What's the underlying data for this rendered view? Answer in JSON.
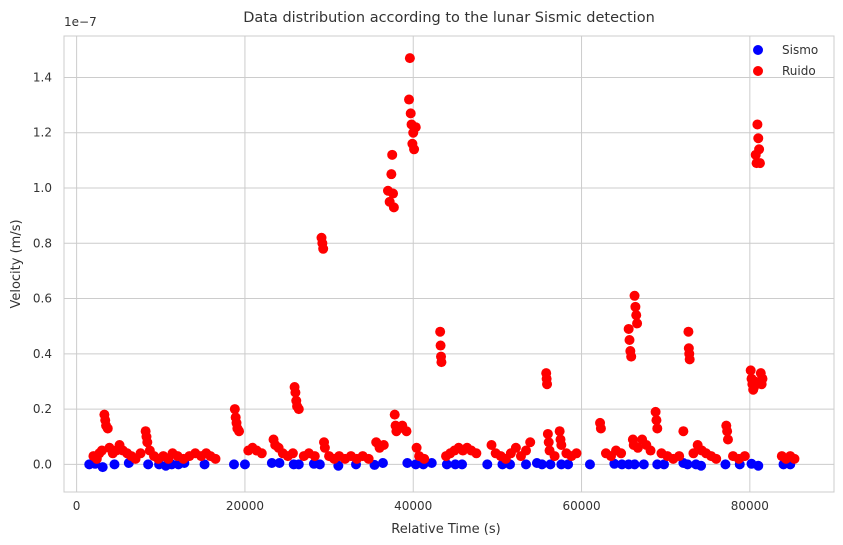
{
  "chart_data": {
    "type": "scatter",
    "title": "Data distribution according to the lunar Sismic detection",
    "xlabel": "Relative Time (s)",
    "ylabel": "Velocity (m/s)",
    "y_multiplier_label": "1e−7",
    "xlim": [
      -1500,
      90000
    ],
    "ylim": [
      -1e-08,
      1.55e-07
    ],
    "x_ticks": [
      0,
      20000,
      40000,
      60000,
      80000
    ],
    "x_tick_labels": [
      "0",
      "20000",
      "40000",
      "60000",
      "80000"
    ],
    "y_ticks": [
      0,
      2e-08,
      4e-08,
      6e-08,
      8e-08,
      1e-07,
      1.2e-07,
      1.4e-07
    ],
    "y_tick_labels": [
      "0.0",
      "0.2",
      "0.4",
      "0.6",
      "0.8",
      "1.0",
      "1.2",
      "1.4"
    ],
    "grid": true,
    "legend_position": "top-right",
    "colors": {
      "Sismo": "#0000ff",
      "Ruido": "#ff0000",
      "grid": "#cccccc",
      "axes_edge": "#cccccc"
    },
    "series": [
      {
        "name": "Sismo",
        "points": [
          [
            1500,
            0.0
          ],
          [
            2200,
            2e-10
          ],
          [
            3100,
            -1e-09
          ],
          [
            4500,
            0.0
          ],
          [
            6200,
            5e-10
          ],
          [
            8500,
            0.0
          ],
          [
            9800,
            0.0
          ],
          [
            10600,
            -5e-10
          ],
          [
            11300,
            0.0
          ],
          [
            12100,
            0.0
          ],
          [
            12800,
            5e-10
          ],
          [
            15200,
            0.0
          ],
          [
            18700,
            0.0
          ],
          [
            20000,
            0.0
          ],
          [
            23200,
            5e-10
          ],
          [
            24100,
            5e-10
          ],
          [
            25800,
            0.0
          ],
          [
            26400,
            0.0
          ],
          [
            28200,
            2e-10
          ],
          [
            28900,
            0.0
          ],
          [
            31100,
            -5e-10
          ],
          [
            33200,
            0.0
          ],
          [
            35400,
            -2e-10
          ],
          [
            36400,
            5e-10
          ],
          [
            39300,
            5e-10
          ],
          [
            40300,
            0.0
          ],
          [
            41200,
            0.0
          ],
          [
            42200,
            5e-10
          ],
          [
            44000,
            0.0
          ],
          [
            45000,
            0.0
          ],
          [
            45800,
            0.0
          ],
          [
            48800,
            0.0
          ],
          [
            50600,
            0.0
          ],
          [
            51500,
            0.0
          ],
          [
            53400,
            0.0
          ],
          [
            54700,
            5e-10
          ],
          [
            55300,
            0.0
          ],
          [
            56300,
            0.0
          ],
          [
            57600,
            0.0
          ],
          [
            58400,
            0.0
          ],
          [
            61000,
            0.0
          ],
          [
            63900,
            2e-10
          ],
          [
            64800,
            0.0
          ],
          [
            65600,
            0.0
          ],
          [
            66300,
            0.0
          ],
          [
            67400,
            0.0
          ],
          [
            69000,
            0.0
          ],
          [
            69800,
            0.0
          ],
          [
            72100,
            5e-10
          ],
          [
            72600,
            0.0
          ],
          [
            73600,
            0.0
          ],
          [
            74200,
            -5e-10
          ],
          [
            77100,
            0.0
          ],
          [
            78800,
            0.0
          ],
          [
            80200,
            2e-10
          ],
          [
            81000,
            -5e-10
          ],
          [
            84000,
            0.0
          ],
          [
            84800,
            0.0
          ]
        ]
      },
      {
        "name": "Ruido",
        "points": [
          [
            2000,
            3e-09
          ],
          [
            2400,
            2e-09
          ],
          [
            2700,
            4e-09
          ],
          [
            3000,
            5e-09
          ],
          [
            3300,
            1.8e-08
          ],
          [
            3400,
            1.6e-08
          ],
          [
            3500,
            1.4e-08
          ],
          [
            3700,
            1.3e-08
          ],
          [
            3900,
            6e-09
          ],
          [
            4300,
            4e-09
          ],
          [
            4700,
            5e-09
          ],
          [
            5100,
            7e-09
          ],
          [
            5500,
            5e-09
          ],
          [
            6000,
            4e-09
          ],
          [
            6500,
            3e-09
          ],
          [
            7000,
            2e-09
          ],
          [
            7600,
            4e-09
          ],
          [
            8200,
            1.2e-08
          ],
          [
            8300,
            1e-08
          ],
          [
            8400,
            8e-09
          ],
          [
            8700,
            5e-09
          ],
          [
            9200,
            3e-09
          ],
          [
            9700,
            2e-09
          ],
          [
            10300,
            3e-09
          ],
          [
            10900,
            2e-09
          ],
          [
            11400,
            4e-09
          ],
          [
            12000,
            3e-09
          ],
          [
            12700,
            2e-09
          ],
          [
            13400,
            3e-09
          ],
          [
            14100,
            4e-09
          ],
          [
            14800,
            3e-09
          ],
          [
            15400,
            4e-09
          ],
          [
            15900,
            3e-09
          ],
          [
            16500,
            2e-09
          ],
          [
            18800,
            2e-08
          ],
          [
            18900,
            1.7e-08
          ],
          [
            19000,
            1.5e-08
          ],
          [
            19100,
            1.3e-08
          ],
          [
            19300,
            1.2e-08
          ],
          [
            20400,
            5e-09
          ],
          [
            20900,
            6e-09
          ],
          [
            21400,
            5e-09
          ],
          [
            22000,
            4e-09
          ],
          [
            23400,
            9e-09
          ],
          [
            23600,
            7e-09
          ],
          [
            24000,
            6e-09
          ],
          [
            24500,
            4e-09
          ],
          [
            25100,
            3e-09
          ],
          [
            25700,
            4e-09
          ],
          [
            25900,
            2.8e-08
          ],
          [
            26000,
            2.6e-08
          ],
          [
            26100,
            2.3e-08
          ],
          [
            26200,
            2.1e-08
          ],
          [
            26400,
            2e-08
          ],
          [
            27000,
            3e-09
          ],
          [
            27600,
            4e-09
          ],
          [
            28300,
            3e-09
          ],
          [
            29100,
            8.2e-08
          ],
          [
            29200,
            8e-08
          ],
          [
            29300,
            7.8e-08
          ],
          [
            29400,
            8e-09
          ],
          [
            29500,
            6e-09
          ],
          [
            30000,
            3e-09
          ],
          [
            30600,
            2e-09
          ],
          [
            31200,
            3e-09
          ],
          [
            31900,
            2e-09
          ],
          [
            32600,
            3e-09
          ],
          [
            33300,
            2e-09
          ],
          [
            34000,
            3e-09
          ],
          [
            34700,
            2e-09
          ],
          [
            35600,
            8e-09
          ],
          [
            36000,
            6e-09
          ],
          [
            36500,
            7e-09
          ],
          [
            37000,
            9.9e-08
          ],
          [
            37200,
            9.5e-08
          ],
          [
            37400,
            1.05e-07
          ],
          [
            37500,
            1.12e-07
          ],
          [
            37600,
            9.8e-08
          ],
          [
            37700,
            9.3e-08
          ],
          [
            37800,
            1.8e-08
          ],
          [
            37900,
            1.4e-08
          ],
          [
            38000,
            1.2e-08
          ],
          [
            38300,
            1.3e-08
          ],
          [
            38700,
            1.4e-08
          ],
          [
            39200,
            1.2e-08
          ],
          [
            39500,
            1.32e-07
          ],
          [
            39600,
            1.47e-07
          ],
          [
            39700,
            1.27e-07
          ],
          [
            39800,
            1.23e-07
          ],
          [
            39900,
            1.16e-07
          ],
          [
            40000,
            1.2e-07
          ],
          [
            40100,
            1.14e-07
          ],
          [
            40300,
            1.22e-07
          ],
          [
            40400,
            6e-09
          ],
          [
            40700,
            3e-09
          ],
          [
            41300,
            2e-09
          ],
          [
            43200,
            4.8e-08
          ],
          [
            43250,
            4.3e-08
          ],
          [
            43300,
            3.9e-08
          ],
          [
            43350,
            3.7e-08
          ],
          [
            43900,
            3e-09
          ],
          [
            44400,
            4e-09
          ],
          [
            44900,
            5e-09
          ],
          [
            45400,
            6e-09
          ],
          [
            45900,
            5e-09
          ],
          [
            46400,
            6e-09
          ],
          [
            46900,
            5e-09
          ],
          [
            47500,
            4e-09
          ],
          [
            49300,
            7e-09
          ],
          [
            49800,
            4e-09
          ],
          [
            50400,
            3e-09
          ],
          [
            51000,
            2e-09
          ],
          [
            51600,
            4e-09
          ],
          [
            52200,
            6e-09
          ],
          [
            52800,
            3e-09
          ],
          [
            53400,
            5e-09
          ],
          [
            53900,
            8e-09
          ],
          [
            55800,
            3.3e-08
          ],
          [
            55850,
            3.1e-08
          ],
          [
            55900,
            2.9e-08
          ],
          [
            56000,
            1.1e-08
          ],
          [
            56100,
            8e-09
          ],
          [
            56200,
            5e-09
          ],
          [
            56800,
            3e-09
          ],
          [
            57400,
            1.2e-08
          ],
          [
            57500,
            9e-09
          ],
          [
            57600,
            7e-09
          ],
          [
            58200,
            4e-09
          ],
          [
            58800,
            3e-09
          ],
          [
            59400,
            4e-09
          ],
          [
            62200,
            1.5e-08
          ],
          [
            62300,
            1.3e-08
          ],
          [
            62900,
            4e-09
          ],
          [
            63500,
            3e-09
          ],
          [
            64100,
            5e-09
          ],
          [
            64700,
            4e-09
          ],
          [
            65600,
            4.9e-08
          ],
          [
            65700,
            4.5e-08
          ],
          [
            65800,
            4.1e-08
          ],
          [
            65900,
            3.9e-08
          ],
          [
            66100,
            9e-09
          ],
          [
            66200,
            7e-09
          ],
          [
            66300,
            6.1e-08
          ],
          [
            66400,
            5.7e-08
          ],
          [
            66500,
            5.4e-08
          ],
          [
            66600,
            5.1e-08
          ],
          [
            66700,
            6e-09
          ],
          [
            67200,
            9e-09
          ],
          [
            67700,
            7e-09
          ],
          [
            68200,
            5e-09
          ],
          [
            68800,
            1.9e-08
          ],
          [
            68900,
            1.6e-08
          ],
          [
            69000,
            1.3e-08
          ],
          [
            69500,
            4e-09
          ],
          [
            70200,
            3e-09
          ],
          [
            70900,
            2e-09
          ],
          [
            71600,
            3e-09
          ],
          [
            72100,
            1.2e-08
          ],
          [
            72700,
            4.8e-08
          ],
          [
            72750,
            4.2e-08
          ],
          [
            72800,
            4e-08
          ],
          [
            72850,
            3.8e-08
          ],
          [
            73300,
            4e-09
          ],
          [
            73800,
            7e-09
          ],
          [
            74300,
            5e-09
          ],
          [
            74800,
            4e-09
          ],
          [
            75400,
            3e-09
          ],
          [
            76000,
            2e-09
          ],
          [
            77200,
            1.4e-08
          ],
          [
            77300,
            1.2e-08
          ],
          [
            77400,
            9e-09
          ],
          [
            78000,
            3e-09
          ],
          [
            78700,
            2e-09
          ],
          [
            79400,
            3e-09
          ],
          [
            80100,
            3.4e-08
          ],
          [
            80200,
            3.1e-08
          ],
          [
            80300,
            2.9e-08
          ],
          [
            80400,
            2.7e-08
          ],
          [
            80500,
            2.8e-08
          ],
          [
            80600,
            3e-08
          ],
          [
            80700,
            1.12e-07
          ],
          [
            80800,
            1.09e-07
          ],
          [
            80900,
            1.23e-07
          ],
          [
            81000,
            1.18e-07
          ],
          [
            81100,
            1.14e-07
          ],
          [
            81200,
            1.09e-07
          ],
          [
            81300,
            3.3e-08
          ],
          [
            81400,
            2.9e-08
          ],
          [
            81500,
            3.1e-08
          ],
          [
            83800,
            3e-09
          ],
          [
            84300,
            2e-09
          ],
          [
            84800,
            3e-09
          ],
          [
            85300,
            2e-09
          ]
        ]
      }
    ]
  }
}
